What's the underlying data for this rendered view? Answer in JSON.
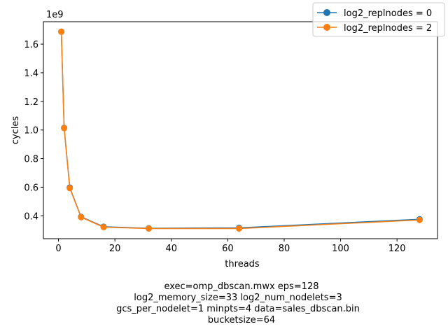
{
  "chart_data": {
    "type": "line",
    "xlabel": "threads",
    "ylabel": "cycles",
    "y_offset_text": "1e9",
    "xlim": [
      -5.35,
      134.35
    ],
    "ylim": [
      0.24,
      1.757
    ],
    "xticks": [
      0,
      20,
      40,
      60,
      80,
      100,
      120
    ],
    "yticks": [
      0.4,
      0.6,
      0.8,
      1.0,
      1.2,
      1.4,
      1.6
    ],
    "ytick_labels": [
      "0.4",
      "0.6",
      "0.8",
      "1.0",
      "1.2",
      "1.4",
      "1.6"
    ],
    "legend_position": "top-right",
    "series": [
      {
        "name": "log2_replnodes = 0",
        "color": "#1f77b4",
        "x": [
          1,
          2,
          4,
          8,
          16,
          32,
          64,
          128
        ],
        "y": [
          1.687,
          1.015,
          0.598,
          0.393,
          0.324,
          0.313,
          0.316,
          0.376
        ]
      },
      {
        "name": "log2_replnodes = 2",
        "color": "#ff7f0e",
        "x": [
          1,
          2,
          4,
          8,
          16,
          32,
          64,
          128
        ],
        "y": [
          1.687,
          1.013,
          0.593,
          0.39,
          0.321,
          0.311,
          0.311,
          0.371
        ]
      }
    ],
    "caption_lines": [
      "exec=omp_dbscan.mwx   eps=128",
      "log2_memory_size=33   log2_num_nodelets=3",
      "gcs_per_nodelet=1   minpts=4   data=sales_dbscan.bin",
      "bucketsize=64"
    ]
  }
}
